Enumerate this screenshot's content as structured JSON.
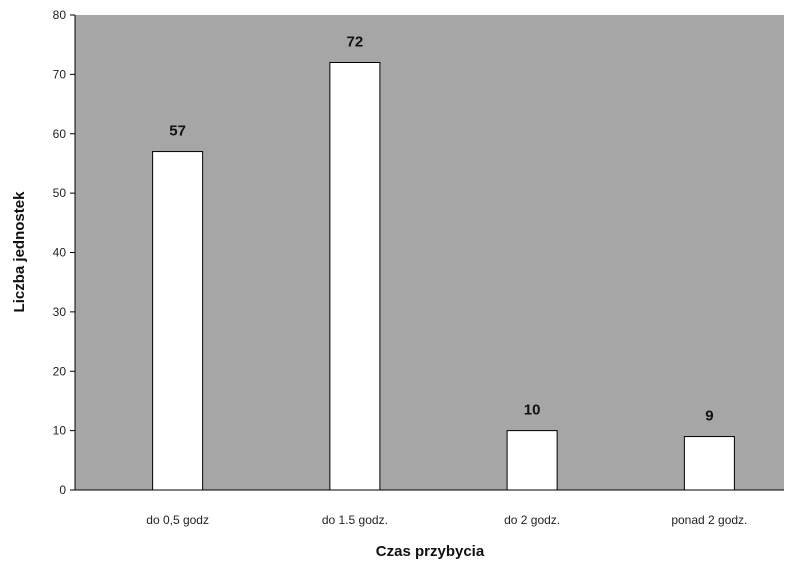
{
  "chart_data": {
    "type": "bar",
    "title": "",
    "xlabel": "Czas przybycia",
    "ylabel": "Liczba jednostek",
    "categories": [
      "do 0,5 godz",
      "do 1.5 godz.",
      "do 2 godz.",
      "ponad 2 godz."
    ],
    "values": [
      57,
      72,
      10,
      9
    ],
    "ylim": [
      0,
      80
    ],
    "yticks": [
      0,
      10,
      20,
      30,
      40,
      50,
      60,
      70,
      80
    ],
    "data_labels": true,
    "grid": false,
    "colors": {
      "plot_background": "#a6a6a6",
      "bar_fill": "#ffffff",
      "bar_stroke": "#000000"
    }
  }
}
